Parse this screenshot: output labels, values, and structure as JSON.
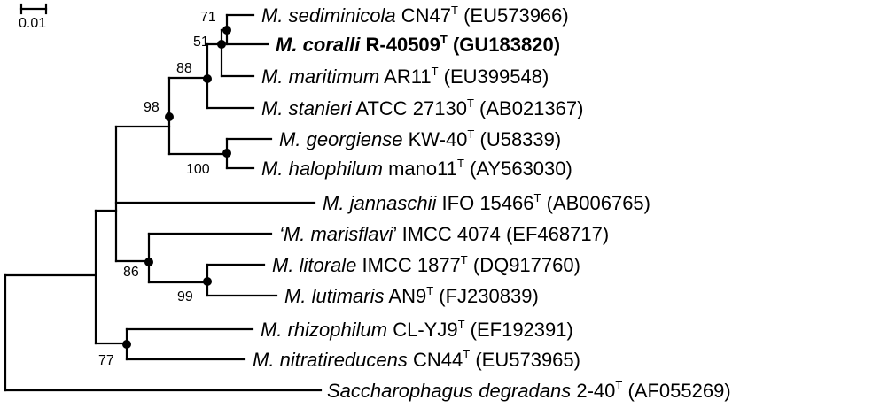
{
  "scale_bar": {
    "label": "0.01"
  },
  "taxa": [
    {
      "id": "sediminicola",
      "genus": "M.",
      "species": "sediminicola",
      "strain": "CN47",
      "type_mark": "T",
      "accession": "(EU573966)",
      "bold": false
    },
    {
      "id": "coralli",
      "genus": "M.",
      "species": "coralli",
      "strain": "R-40509",
      "type_mark": "T",
      "accession": "(GU183820)",
      "bold": true
    },
    {
      "id": "maritimum",
      "genus": "M.",
      "species": "maritimum",
      "strain": "AR11",
      "type_mark": "T",
      "accession": "(EU399548)",
      "bold": false
    },
    {
      "id": "stanieri",
      "genus": "M.",
      "species": "stanieri",
      "strain": "ATCC 27130",
      "type_mark": "T",
      "accession": "(AB021367)",
      "bold": false
    },
    {
      "id": "georgiense",
      "genus": "M.",
      "species": "georgiense",
      "strain": "KW-40",
      "type_mark": "T",
      "accession": "(U58339)",
      "bold": false
    },
    {
      "id": "halophilum",
      "genus": "M.",
      "species": "halophilum",
      "strain": "mano11",
      "type_mark": "T",
      "accession": "(AY563030)",
      "bold": false
    },
    {
      "id": "jannaschii",
      "genus": "M.",
      "species": "jannaschii",
      "strain": "IFO 15466",
      "type_mark": "T",
      "accession": "(AB006765)",
      "bold": false
    },
    {
      "id": "marisflavi",
      "genus": "‘M.",
      "species": "marisflavi",
      "close_quote": "’",
      "strain": "IMCC 4074",
      "type_mark": "",
      "accession": "(EF468717)",
      "bold": false
    },
    {
      "id": "litorale",
      "genus": "M.",
      "species": "litorale",
      "strain": "IMCC 1877",
      "type_mark": "T",
      "accession": "(DQ917760)",
      "bold": false
    },
    {
      "id": "lutimaris",
      "genus": "M.",
      "species": "lutimaris",
      "strain": "AN9",
      "type_mark": "T",
      "accession": "(FJ230839)",
      "bold": false
    },
    {
      "id": "rhizophilum",
      "genus": "M.",
      "species": "rhizophilum",
      "strain": "CL-YJ9",
      "type_mark": "T",
      "accession": "(EF192391)",
      "bold": false
    },
    {
      "id": "nitratireducens",
      "genus": "M.",
      "species": "nitratireducens",
      "strain": "CN44",
      "type_mark": "T",
      "accession": "(EU573965)",
      "bold": false
    },
    {
      "id": "saccharophagus",
      "genus": "Saccharophagus",
      "species": "degradans",
      "strain": "2-40",
      "type_mark": "T",
      "accession": "(AF055269)",
      "bold": false
    }
  ],
  "bootstrap": [
    {
      "node": "sediminicola-coralli",
      "value": "71"
    },
    {
      "node": "sediminicola-coralli-maritimum",
      "value": "51"
    },
    {
      "node": "sediminicola-stanieri",
      "value": "88"
    },
    {
      "node": "sediminicola-halophilum",
      "value": "98"
    },
    {
      "node": "georgiense-halophilum",
      "value": "100"
    },
    {
      "node": "marisflavi-lutimaris",
      "value": "86"
    },
    {
      "node": "litorale-lutimaris",
      "value": "99"
    },
    {
      "node": "rhizophilum-nitratireducens",
      "value": "77"
    }
  ]
}
